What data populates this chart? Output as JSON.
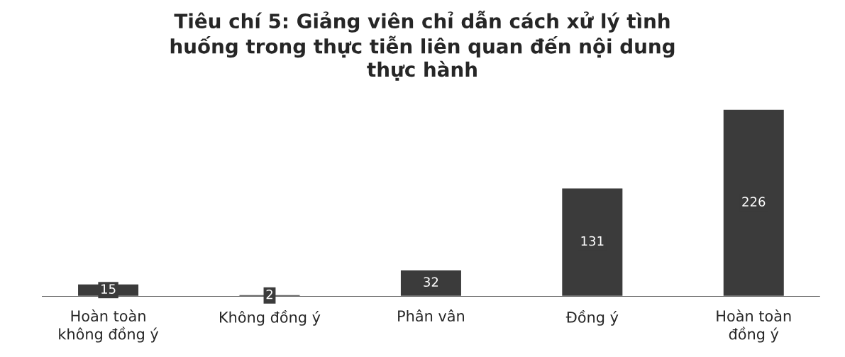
{
  "chart_data": {
    "type": "bar",
    "title": "Tiêu chí 5: Giảng viên chỉ dẫn cách xử lý tình\nhuống trong thực tiễn liên quan đến nội dung\nthực hành",
    "categories": [
      "Hoàn toàn\nkhông đồng ý",
      "Không đồng ý",
      "Phân vân",
      "Đồng ý",
      "Hoàn toàn\nđồng ý"
    ],
    "values": [
      15,
      2,
      32,
      131,
      226
    ],
    "color": "#3b3b3b",
    "data_labels": true,
    "grid": false,
    "legend": false
  }
}
